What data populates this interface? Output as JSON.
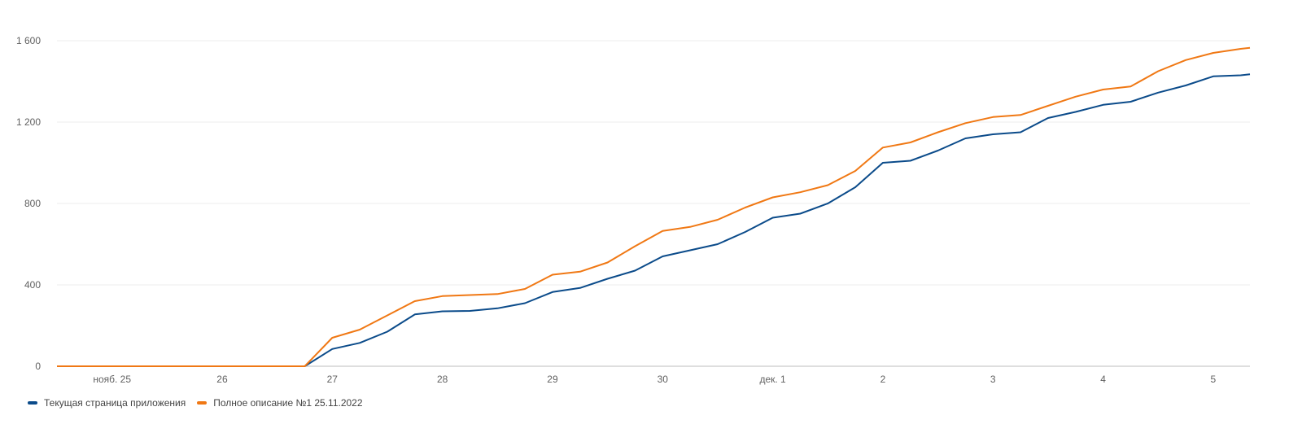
{
  "chart_data": {
    "type": "line",
    "title": "",
    "xlabel": "",
    "ylabel": "",
    "xlim": [
      "2022-11-24 12:00",
      "2022-12-05 08:00"
    ],
    "ylim": [
      0,
      1600
    ],
    "grid": true,
    "legend_position": "bottom-left",
    "y_ticks": [
      {
        "value": 0,
        "label": "0"
      },
      {
        "value": 400,
        "label": "400"
      },
      {
        "value": 800,
        "label": "800"
      },
      {
        "value": 1200,
        "label": "1 200"
      },
      {
        "value": 1600,
        "label": "1 600"
      }
    ],
    "x_ticks": [
      {
        "date": "2022-11-25 00:00",
        "label": "нояб. 25"
      },
      {
        "date": "2022-11-26 00:00",
        "label": "26"
      },
      {
        "date": "2022-11-27 00:00",
        "label": "27"
      },
      {
        "date": "2022-11-28 00:00",
        "label": "28"
      },
      {
        "date": "2022-11-29 00:00",
        "label": "29"
      },
      {
        "date": "2022-11-30 00:00",
        "label": "30"
      },
      {
        "date": "2022-12-01 00:00",
        "label": "дек. 1"
      },
      {
        "date": "2022-12-02 00:00",
        "label": "2"
      },
      {
        "date": "2022-12-03 00:00",
        "label": "3"
      },
      {
        "date": "2022-12-04 00:00",
        "label": "4"
      },
      {
        "date": "2022-12-05 00:00",
        "label": "5"
      }
    ],
    "x": [
      "2022-11-24 12:00",
      "2022-11-26 18:00",
      "2022-11-27 00:00",
      "2022-11-27 06:00",
      "2022-11-27 12:00",
      "2022-11-27 18:00",
      "2022-11-28 00:00",
      "2022-11-28 06:00",
      "2022-11-28 12:00",
      "2022-11-28 18:00",
      "2022-11-29 00:00",
      "2022-11-29 06:00",
      "2022-11-29 12:00",
      "2022-11-29 18:00",
      "2022-11-30 00:00",
      "2022-11-30 06:00",
      "2022-11-30 12:00",
      "2022-11-30 18:00",
      "2022-12-01 00:00",
      "2022-12-01 06:00",
      "2022-12-01 12:00",
      "2022-12-01 18:00",
      "2022-12-02 00:00",
      "2022-12-02 06:00",
      "2022-12-02 12:00",
      "2022-12-02 18:00",
      "2022-12-03 00:00",
      "2022-12-03 06:00",
      "2022-12-03 12:00",
      "2022-12-03 18:00",
      "2022-12-04 00:00",
      "2022-12-04 06:00",
      "2022-12-04 12:00",
      "2022-12-04 18:00",
      "2022-12-05 00:00",
      "2022-12-05 06:00",
      "2022-12-05 08:00"
    ],
    "series": [
      {
        "name": "Текущая страница приложения",
        "color": "#0b4b8a",
        "values": [
          0,
          0,
          85,
          115,
          170,
          255,
          270,
          272,
          285,
          310,
          365,
          385,
          430,
          470,
          540,
          570,
          600,
          660,
          730,
          750,
          800,
          880,
          1000,
          1010,
          1060,
          1120,
          1140,
          1150,
          1220,
          1250,
          1285,
          1300,
          1345,
          1380,
          1425,
          1430,
          1435
        ]
      },
      {
        "name": "Полное описание №1 25.11.2022",
        "color": "#f07814",
        "values": [
          0,
          0,
          140,
          180,
          250,
          320,
          345,
          350,
          355,
          380,
          450,
          465,
          510,
          590,
          665,
          685,
          720,
          780,
          830,
          855,
          890,
          960,
          1075,
          1100,
          1150,
          1195,
          1225,
          1235,
          1280,
          1325,
          1360,
          1375,
          1450,
          1505,
          1540,
          1560,
          1565
        ]
      }
    ]
  }
}
